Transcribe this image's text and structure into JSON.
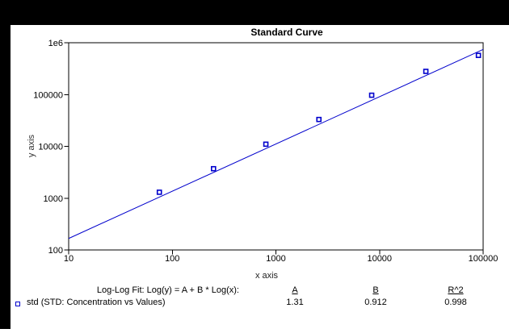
{
  "window": {
    "top_border_color": "#000000",
    "left_border_color": "#000000",
    "background_color": "#ffffff"
  },
  "chart_data": {
    "type": "scatter",
    "title": "Standard Curve",
    "xlabel": "x axis",
    "ylabel": "y axis",
    "x_scale": "log",
    "y_scale": "log",
    "xlim": [
      10,
      100000
    ],
    "ylim": [
      100,
      1000000
    ],
    "x_tick_labels": [
      "10",
      "100",
      "1000",
      "10000",
      "100000"
    ],
    "y_tick_labels": [
      "100",
      "1000",
      "10000",
      "100000",
      "1e6"
    ],
    "grid": false,
    "frame_color": "#000000",
    "legend_position": "bottom-left",
    "series": [
      {
        "name": "std",
        "marker": "open-square",
        "color": "#0000cc",
        "x": [
          75,
          250,
          800,
          2600,
          8400,
          28000,
          90000
        ],
        "y": [
          1300,
          3700,
          11000,
          33000,
          97000,
          280000,
          570000
        ]
      }
    ],
    "fit": {
      "model": "log-log-linear",
      "A": 1.31,
      "B": 0.912,
      "R2": 0.998
    }
  },
  "fit_table": {
    "label": "Log-Log Fit: Log(y) = A + B * Log(x):",
    "col_A": "A",
    "col_B": "B",
    "col_R2": "R^2",
    "val_A": "1.31",
    "val_B": "0.912",
    "val_R2": "0.998",
    "legend_label": "std (STD: Concentration vs Values)"
  }
}
